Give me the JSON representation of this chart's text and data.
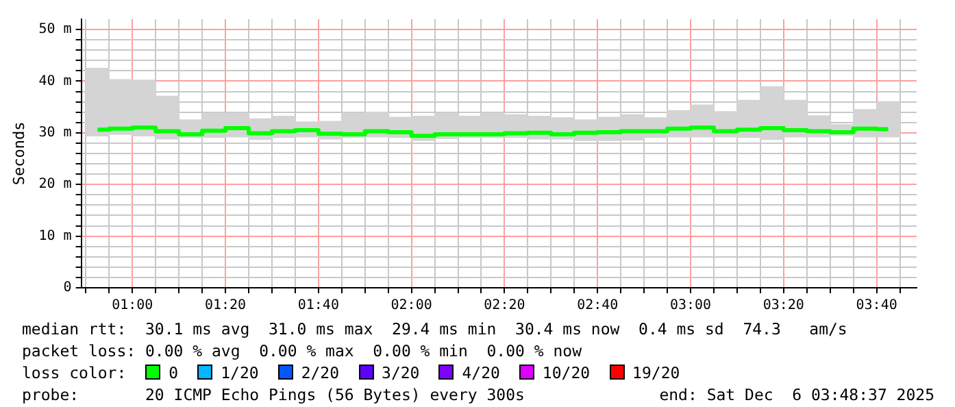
{
  "chart_data": {
    "type": "bar",
    "ylabel": "Seconds",
    "x": [
      0.875,
      0.9583,
      1.0417,
      1.125,
      1.2083,
      1.2917,
      1.375,
      1.4583,
      1.5417,
      1.625,
      1.7083,
      1.7917,
      1.875,
      1.9583,
      2.0417,
      2.125,
      2.2083,
      2.2917,
      2.375,
      2.4583,
      2.5417,
      2.625,
      2.7083,
      2.7917,
      2.875,
      2.9583,
      3.0417,
      3.125,
      3.2083,
      3.2917,
      3.375,
      3.4583,
      3.5417,
      3.625,
      3.7083
    ],
    "series": [
      {
        "type": "bar",
        "color": "#d4d4d4",
        "base": [
          29.4,
          29.7,
          29.4,
          28.8,
          29.1,
          29.1,
          29.2,
          28.7,
          29.1,
          29.2,
          28.8,
          29.1,
          29.2,
          29.1,
          28.5,
          28.9,
          29.1,
          29.1,
          29.1,
          28.8,
          28.8,
          28.5,
          28.5,
          28.6,
          29.1,
          29.2,
          29.2,
          29.2,
          29.1,
          28.7,
          29.2,
          29.2,
          29.5,
          29.2,
          29.2
        ],
        "values": [
          13.1,
          10.6,
          10.8,
          8.3,
          3.4,
          4.7,
          4.6,
          4.0,
          4.1,
          2.9,
          3.4,
          4.7,
          4.8,
          3.9,
          4.7,
          4.9,
          4.1,
          4.7,
          4.4,
          4.4,
          4.1,
          4.0,
          4.5,
          4.9,
          3.8,
          5.1,
          6.2,
          4.9,
          7.2,
          10.2,
          7.1,
          4.1,
          2.1,
          5.3,
          6.7
        ]
      },
      {
        "type": "step",
        "color": "#00ff00",
        "values": [
          30.6,
          30.8,
          31.0,
          30.3,
          29.7,
          30.4,
          30.9,
          29.9,
          30.3,
          30.5,
          29.8,
          29.7,
          30.3,
          30.1,
          29.4,
          29.7,
          29.7,
          29.7,
          29.9,
          30.0,
          29.7,
          30.0,
          30.1,
          30.3,
          30.3,
          30.8,
          31.0,
          30.3,
          30.6,
          30.9,
          30.5,
          30.3,
          30.1,
          30.8,
          30.7
        ]
      }
    ],
    "xlim": [
      0.8167,
      3.81
    ],
    "xticks": [
      {
        "value": 0.8333,
        "label": null
      },
      {
        "value": 0.9167,
        "label": null
      },
      {
        "value": 1,
        "label": "01:00"
      },
      {
        "value": 1.0833,
        "label": null
      },
      {
        "value": 1.1667,
        "label": null
      },
      {
        "value": 1.25,
        "label": null
      },
      {
        "value": 1.3333,
        "label": "01:20"
      },
      {
        "value": 1.4167,
        "label": null
      },
      {
        "value": 1.5,
        "label": null
      },
      {
        "value": 1.5833,
        "label": null
      },
      {
        "value": 1.6667,
        "label": "01:40"
      },
      {
        "value": 1.75,
        "label": null
      },
      {
        "value": 1.8333,
        "label": null
      },
      {
        "value": 1.9167,
        "label": null
      },
      {
        "value": 2,
        "label": "02:00"
      },
      {
        "value": 2.0833,
        "label": null
      },
      {
        "value": 2.1667,
        "label": null
      },
      {
        "value": 2.25,
        "label": null
      },
      {
        "value": 2.3333,
        "label": "02:20"
      },
      {
        "value": 2.4167,
        "label": null
      },
      {
        "value": 2.5,
        "label": null
      },
      {
        "value": 2.5833,
        "label": null
      },
      {
        "value": 2.6667,
        "label": "02:40"
      },
      {
        "value": 2.75,
        "label": null
      },
      {
        "value": 2.8333,
        "label": null
      },
      {
        "value": 2.9167,
        "label": null
      },
      {
        "value": 3,
        "label": "03:00"
      },
      {
        "value": 3.0833,
        "label": null
      },
      {
        "value": 3.1667,
        "label": null
      },
      {
        "value": 3.25,
        "label": null
      },
      {
        "value": 3.3333,
        "label": "03:20"
      },
      {
        "value": 3.4167,
        "label": null
      },
      {
        "value": 3.5,
        "label": null
      },
      {
        "value": 3.5833,
        "label": null
      },
      {
        "value": 3.6667,
        "label": "03:40"
      },
      {
        "value": 3.75,
        "label": null
      }
    ],
    "ylim": [
      0,
      52
    ],
    "yticks": [
      0,
      {
        "value": 2,
        "label": null
      },
      {
        "value": 4,
        "label": null
      },
      {
        "value": 6,
        "label": null
      },
      {
        "value": 8,
        "label": null
      },
      {
        "value": 10,
        "label": "10 m"
      },
      {
        "value": 12,
        "label": null
      },
      {
        "value": 14,
        "label": null
      },
      {
        "value": 16,
        "label": null
      },
      {
        "value": 18,
        "label": null
      },
      {
        "value": 20,
        "label": "20 m"
      },
      {
        "value": 22,
        "label": null
      },
      {
        "value": 24,
        "label": null
      },
      {
        "value": 26,
        "label": null
      },
      {
        "value": 28,
        "label": null
      },
      {
        "value": 30,
        "label": "30 m"
      },
      {
        "value": 32,
        "label": null
      },
      {
        "value": 34,
        "label": null
      },
      {
        "value": 36,
        "label": null
      },
      {
        "value": 38,
        "label": null
      },
      {
        "value": 40,
        "label": "40 m"
      },
      {
        "value": 42,
        "label": null
      },
      {
        "value": 44,
        "label": null
      },
      {
        "value": 46,
        "label": null
      },
      {
        "value": 48,
        "label": null
      },
      {
        "value": 50,
        "label": "50 m"
      }
    ],
    "grid": true,
    "legend": false,
    "annotations": [
      "median rtt:  30.1 ms avg  31.0 ms max  29.4 ms min  30.4 ms now  0.4 ms sd  74.3   am/s",
      "packet loss: 0.00 % avg  0.00 % max  0.00 % min  0.00 % now",
      "loss color:",
      "0",
      "1/20",
      "2/20",
      "3/20",
      "4/20",
      "10/20",
      "19/20",
      "probe:       20 ICMP Echo Pings (56 Bytes) every 300s",
      "end: Sat Dec  6 03:48:37 2025"
    ]
  }
}
